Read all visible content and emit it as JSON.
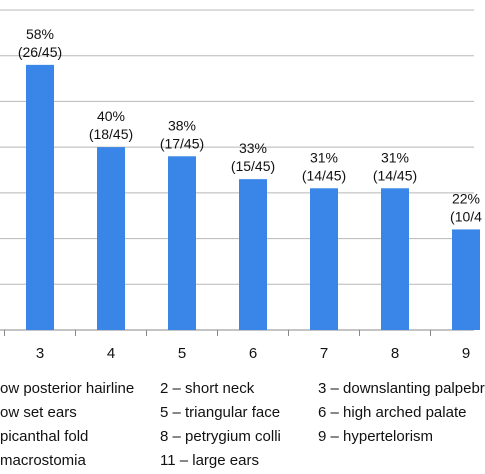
{
  "chart_data": {
    "type": "bar",
    "categories": [
      "3",
      "4",
      "5",
      "6",
      "7",
      "8",
      "9"
    ],
    "values": [
      58,
      40,
      38,
      33,
      31,
      31,
      22
    ],
    "labels_pct": [
      "58%",
      "40%",
      "38%",
      "33%",
      "31%",
      "31%",
      "22%"
    ],
    "labels_frac": [
      "(26/45)",
      "(18/45)",
      "(17/45)",
      "(15/45)",
      "(14/45)",
      "(14/45)",
      "(10/4"
    ],
    "ylim": [
      0,
      70
    ],
    "grid": true,
    "bar_color": "#3a86e8",
    "legend_items": [
      [
        "ow posterior hairline",
        "2 – short neck",
        "3 – downslanting palpebr"
      ],
      [
        "ow set ears",
        "5 – triangular face",
        "6 – high arched palate"
      ],
      [
        "picanthal fold",
        "8 – petrygium colli",
        "9 – hypertelorism"
      ],
      [
        "macrostomia",
        "11 – large ears",
        ""
      ]
    ]
  }
}
